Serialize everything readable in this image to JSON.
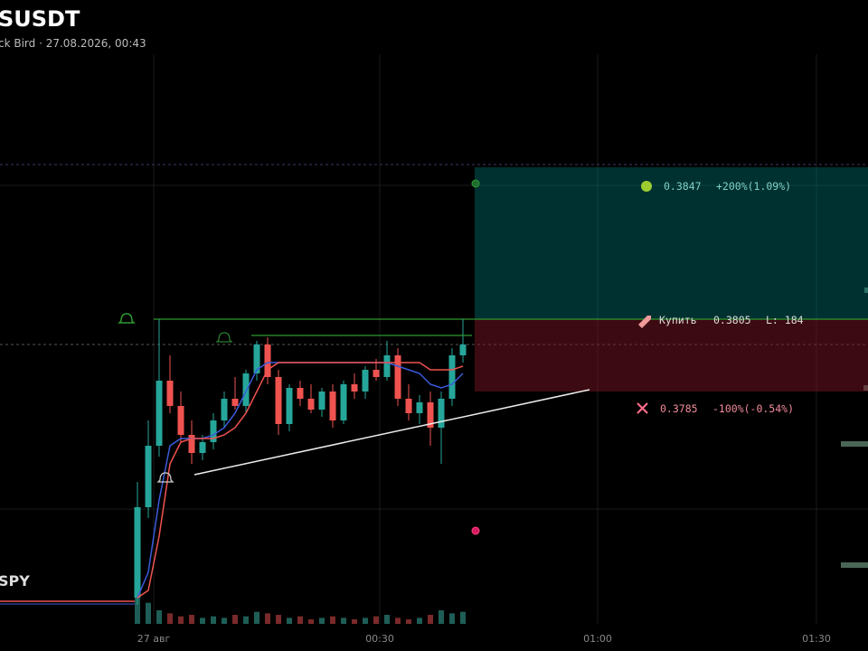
{
  "header": {
    "symbol": "SUSDT",
    "subtitle": "ck Bird · 27.08.2026, 00:43"
  },
  "chart": {
    "ylim": [
      0.3715,
      0.3865
    ],
    "candles": [
      [
        0.3728,
        0.376,
        0.3726,
        0.3753
      ],
      [
        0.3753,
        0.3777,
        0.375,
        0.377
      ],
      [
        0.377,
        0.3805,
        0.3767,
        0.3788
      ],
      [
        0.3788,
        0.3795,
        0.3779,
        0.3781
      ],
      [
        0.3781,
        0.3785,
        0.3771,
        0.3773
      ],
      [
        0.3773,
        0.3777,
        0.3765,
        0.3768
      ],
      [
        0.3768,
        0.3773,
        0.3766,
        0.3771
      ],
      [
        0.3771,
        0.3779,
        0.3769,
        0.3777
      ],
      [
        0.3777,
        0.3785,
        0.3775,
        0.3783
      ],
      [
        0.3783,
        0.3789,
        0.378,
        0.3781
      ],
      [
        0.3781,
        0.3791,
        0.3779,
        0.379
      ],
      [
        0.379,
        0.3799,
        0.3788,
        0.3798
      ],
      [
        0.3798,
        0.38,
        0.3787,
        0.3789
      ],
      [
        0.3789,
        0.3791,
        0.3773,
        0.3776
      ],
      [
        0.3776,
        0.3787,
        0.3774,
        0.3786
      ],
      [
        0.3786,
        0.3788,
        0.3781,
        0.3783
      ],
      [
        0.3783,
        0.3787,
        0.3779,
        0.378
      ],
      [
        0.378,
        0.3786,
        0.3778,
        0.3785
      ],
      [
        0.3785,
        0.3787,
        0.3775,
        0.3777
      ],
      [
        0.3777,
        0.3788,
        0.3776,
        0.3787
      ],
      [
        0.3787,
        0.379,
        0.3783,
        0.3785
      ],
      [
        0.3785,
        0.3792,
        0.3783,
        0.3791
      ],
      [
        0.3791,
        0.3794,
        0.3788,
        0.3789
      ],
      [
        0.3789,
        0.3799,
        0.3788,
        0.3795
      ],
      [
        0.3795,
        0.3797,
        0.3781,
        0.3783
      ],
      [
        0.3783,
        0.3787,
        0.3777,
        0.3779
      ],
      [
        0.3779,
        0.3784,
        0.3776,
        0.3782
      ],
      [
        0.3782,
        0.3785,
        0.377,
        0.3775
      ],
      [
        0.3775,
        0.3785,
        0.3765,
        0.3783
      ],
      [
        0.3783,
        0.3797,
        0.3781,
        0.3795
      ],
      [
        0.3795,
        0.3805,
        0.3793,
        0.3798
      ]
    ],
    "volumes": [
      18,
      14,
      9,
      7,
      5,
      6,
      4,
      5,
      4,
      6,
      5,
      8,
      7,
      6,
      4,
      5,
      3,
      4,
      5,
      4,
      3,
      4,
      5,
      6,
      4,
      3,
      4,
      6,
      9,
      7,
      8
    ],
    "ma_fast": [
      0.3728,
      0.3735,
      0.3755,
      0.377,
      0.3772,
      0.3772,
      0.3772,
      0.3773,
      0.3775,
      0.3779,
      0.3785,
      0.3791,
      0.3793,
      0.3793,
      0.3793,
      0.3793,
      0.3793,
      0.3793,
      0.3793,
      0.3793,
      0.3793,
      0.3793,
      0.3793,
      0.3793,
      0.3792,
      0.3791,
      0.379,
      0.3787,
      0.3786,
      0.3787,
      0.379
    ],
    "ma_slow": [
      0.3728,
      0.373,
      0.3745,
      0.3765,
      0.3771,
      0.3772,
      0.3772,
      0.3772,
      0.3773,
      0.3775,
      0.3779,
      0.3785,
      0.3791,
      0.3793,
      0.3793,
      0.3793,
      0.3793,
      0.3793,
      0.3793,
      0.3793,
      0.3793,
      0.3793,
      0.3793,
      0.3793,
      0.3793,
      0.3793,
      0.3793,
      0.3791,
      0.3791,
      0.3791,
      0.3792
    ],
    "time_labels": [
      "27 авг",
      "00:30",
      "01:00",
      "01:30"
    ],
    "indicator": "SPY",
    "position": {
      "take_profit": {
        "price": 0.3847,
        "text": "+200%(1.09%)"
      },
      "entry": {
        "action": "Купить",
        "price": 0.3805,
        "size": "L: 184"
      },
      "stop_loss": {
        "price": 0.3785,
        "text": "-100%(-0.54%)"
      }
    }
  }
}
